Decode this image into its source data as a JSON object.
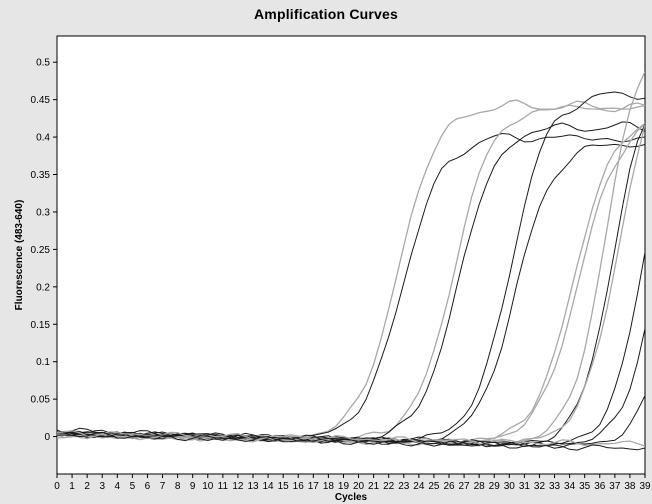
{
  "chart_data": {
    "type": "line",
    "title": "Amplification Curves",
    "xlabel": "Cycles",
    "ylabel": "Fluorescence (483-640)",
    "xlim": [
      0,
      39
    ],
    "ylim": [
      -0.05,
      0.535
    ],
    "x_ticks": [
      0,
      1,
      2,
      3,
      4,
      5,
      6,
      7,
      8,
      9,
      10,
      11,
      12,
      13,
      14,
      15,
      16,
      17,
      18,
      19,
      20,
      21,
      22,
      23,
      24,
      25,
      26,
      27,
      28,
      29,
      30,
      31,
      32,
      33,
      34,
      35,
      36,
      37,
      38,
      39
    ],
    "y_ticks": [
      0,
      0.05,
      0.1,
      0.15,
      0.2,
      0.25,
      0.3,
      0.35,
      0.4,
      0.45,
      0.5
    ],
    "y_tick_labels": [
      "0",
      "0.05",
      "0.1",
      "0.15",
      "0.2",
      "0.25",
      "0.3",
      "0.35",
      "0.4",
      "0.45",
      "0.5"
    ],
    "grid": false,
    "legend": "none",
    "colors": {
      "plot_background": "#ffffff",
      "page_background": "#e6e6e6",
      "dark_series": "#1a1a1a",
      "light_series": "#a8a8a8"
    },
    "series_params": [
      {
        "color": "light",
        "midpoint": 22.6,
        "slope": 0.75,
        "plateau": 0.452,
        "baseline": 0.003,
        "drift": -0.0004
      },
      {
        "color": "dark",
        "midpoint": 22.9,
        "slope": 0.75,
        "plateau": 0.412,
        "baseline": 0.004,
        "drift": -0.0005
      },
      {
        "color": "light",
        "midpoint": 26.3,
        "slope": 0.78,
        "plateau": 0.448,
        "baseline": 0.002,
        "drift": -0.0003
      },
      {
        "color": "dark",
        "midpoint": 26.6,
        "slope": 0.78,
        "plateau": 0.425,
        "baseline": 0.003,
        "drift": -0.0004
      },
      {
        "color": "dark",
        "midpoint": 30.1,
        "slope": 0.8,
        "plateau": 0.47,
        "baseline": 0.006,
        "drift": -0.0005
      },
      {
        "color": "dark",
        "midpoint": 30.4,
        "slope": 0.8,
        "plateau": 0.405,
        "baseline": 0.005,
        "drift": -0.0005
      },
      {
        "color": "light",
        "midpoint": 34.3,
        "slope": 0.75,
        "plateau": 0.445,
        "baseline": 0.002,
        "drift": -0.0004
      },
      {
        "color": "light",
        "midpoint": 34.6,
        "slope": 0.75,
        "plateau": 0.44,
        "baseline": 0.003,
        "drift": -0.0004
      },
      {
        "color": "dark",
        "midpoint": 36.8,
        "slope": 0.9,
        "plateau": 0.49,
        "baseline": 0.004,
        "drift": -0.0005
      },
      {
        "color": "light",
        "midpoint": 36.4,
        "slope": 0.85,
        "plateau": 0.56,
        "baseline": 0.002,
        "drift": -0.0004
      },
      {
        "color": "light",
        "midpoint": 37.3,
        "slope": 0.8,
        "plateau": 0.54,
        "baseline": 0.003,
        "drift": -0.0004
      },
      {
        "color": "dark",
        "midpoint": 38.9,
        "slope": 0.9,
        "plateau": 0.5,
        "baseline": 0.004,
        "drift": -0.0005
      },
      {
        "color": "dark",
        "midpoint": 39.8,
        "slope": 0.9,
        "plateau": 0.48,
        "baseline": 0.006,
        "drift": -0.0005
      },
      {
        "color": "dark",
        "midpoint": 41.0,
        "slope": 0.9,
        "plateau": 0.48,
        "baseline": 0.008,
        "drift": -0.0006
      },
      {
        "color": "light",
        "midpoint": 48.0,
        "slope": 0.6,
        "plateau": 0.4,
        "baseline": 0.005,
        "drift": -0.0004
      },
      {
        "color": "dark",
        "midpoint": 48.0,
        "slope": 0.6,
        "plateau": 0.4,
        "baseline": 0.003,
        "drift": -0.0005
      }
    ]
  }
}
